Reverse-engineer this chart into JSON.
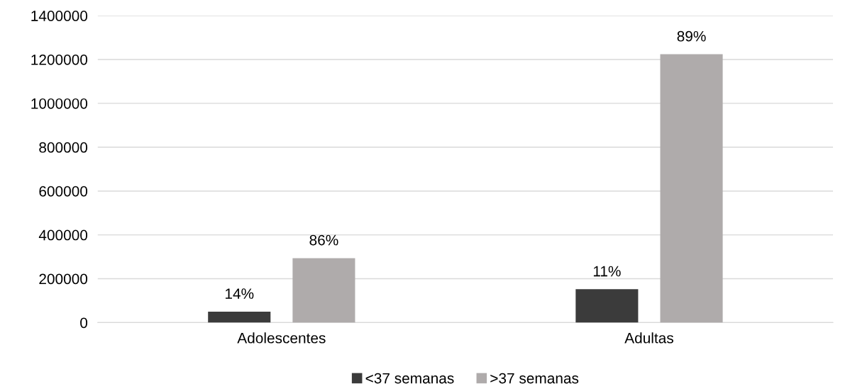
{
  "chart_data": {
    "type": "bar",
    "categories": [
      "Adolescentes",
      "Adultas"
    ],
    "series": [
      {
        "name": "<37 semanas",
        "color": "#3b3b3b",
        "values": [
          50000,
          152000
        ]
      },
      {
        "name": ">37 semanas",
        "color": "#afabab",
        "values": [
          294000,
          1224000
        ]
      }
    ],
    "annotations": [
      "14%",
      "86%",
      "11%",
      "89%"
    ],
    "ylim": [
      0,
      1400000
    ],
    "yticks": [
      0,
      200000,
      400000,
      600000,
      800000,
      1000000,
      1200000,
      1400000
    ],
    "grid": "y",
    "legend": "bottom"
  }
}
